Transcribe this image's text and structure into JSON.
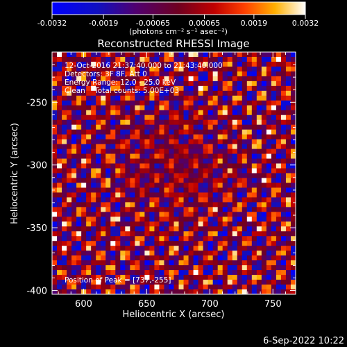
{
  "chart_data": {
    "type": "heatmap",
    "title": "Reconstructed RHESSI Image",
    "xlabel": "Heliocentric X (arcsec)",
    "ylabel": "Heliocentric Y (arcsec)",
    "xlim": [
      575,
      768
    ],
    "ylim": [
      -403,
      -210
    ],
    "x_ticks": [
      600,
      650,
      700,
      750
    ],
    "x_tick_labels": [
      "600",
      "650",
      "700",
      "750"
    ],
    "y_ticks": [
      -250,
      -300,
      -350,
      -400
    ],
    "y_tick_labels": [
      "-250",
      "-300",
      "-350",
      "-400"
    ],
    "colorbar": {
      "range": [
        -0.0032,
        0.0032
      ],
      "ticks": [
        -0.0032,
        -0.0019,
        -0.00065,
        0.00065,
        0.0019,
        0.0032
      ],
      "tick_labels": [
        "-0.0032",
        "-0.0019",
        "-0.00065",
        "0.00065",
        "0.0019",
        "0.0032"
      ],
      "units_label": "(photons cm⁻² s⁻¹ asec⁻²)"
    },
    "annotations": {
      "time_range": "12-Oct-2016 21:37:40.000 to 21:43:40.000",
      "detectors": "Detectors: 3F 8F, Att 0",
      "energy": "Energy Range: 12.0 - 25.0 keV",
      "method": "Clean    Total counts: 5.00E+03",
      "peak": "Position of Peak = [737,-255]"
    },
    "pattern": "diagonal fringe pattern, values clipped to colorbar range"
  },
  "footer": {
    "date": "6-Sep-2022 10:22"
  }
}
